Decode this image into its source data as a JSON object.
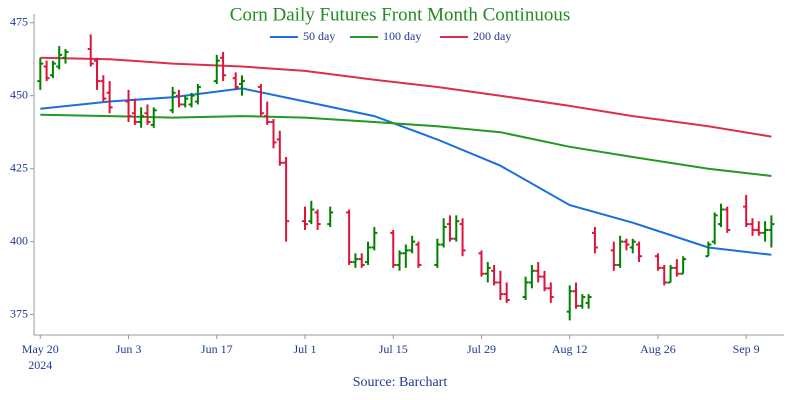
{
  "chart_data": {
    "type": "ohlc",
    "title": "Corn Daily Futures Front Month Continuous",
    "source": "Source: Barchart",
    "title_color": "#228b22",
    "up_color": "#008000",
    "down_color": "#dc143c",
    "legend": "top",
    "x": [
      "2024-05-20",
      "2024-05-21",
      "2024-05-22",
      "2024-05-23",
      "2024-05-24",
      "2024-05-28",
      "2024-05-29",
      "2024-05-30",
      "2024-05-31",
      "2024-06-03",
      "2024-06-04",
      "2024-06-05",
      "2024-06-06",
      "2024-06-07",
      "2024-06-10",
      "2024-06-11",
      "2024-06-12",
      "2024-06-13",
      "2024-06-14",
      "2024-06-17",
      "2024-06-18",
      "2024-06-20",
      "2024-06-21",
      "2024-06-24",
      "2024-06-25",
      "2024-06-26",
      "2024-06-27",
      "2024-06-28",
      "2024-07-01",
      "2024-07-02",
      "2024-07-03",
      "2024-07-05",
      "2024-07-08",
      "2024-07-09",
      "2024-07-10",
      "2024-07-11",
      "2024-07-12",
      "2024-07-15",
      "2024-07-16",
      "2024-07-17",
      "2024-07-18",
      "2024-07-19",
      "2024-07-22",
      "2024-07-23",
      "2024-07-24",
      "2024-07-25",
      "2024-07-26",
      "2024-07-29",
      "2024-07-30",
      "2024-07-31",
      "2024-08-01",
      "2024-08-02",
      "2024-08-05",
      "2024-08-06",
      "2024-08-07",
      "2024-08-08",
      "2024-08-09",
      "2024-08-12",
      "2024-08-13",
      "2024-08-14",
      "2024-08-15",
      "2024-08-16",
      "2024-08-19",
      "2024-08-20",
      "2024-08-21",
      "2024-08-22",
      "2024-08-23",
      "2024-08-26",
      "2024-08-27",
      "2024-08-28",
      "2024-08-29",
      "2024-08-30",
      "2024-09-03",
      "2024-09-04",
      "2024-09-05",
      "2024-09-06",
      "2024-09-09",
      "2024-09-10",
      "2024-09-11",
      "2024-09-12",
      "2024-09-13"
    ],
    "open": [
      455,
      460,
      457,
      460,
      463,
      466,
      462,
      455,
      451,
      448,
      444,
      441,
      444,
      440,
      445,
      450,
      447,
      447,
      448,
      455,
      463,
      456,
      454,
      453,
      443,
      441,
      435,
      427,
      407,
      407,
      410,
      406,
      410,
      393,
      394,
      393,
      398,
      403,
      392,
      396,
      397,
      399,
      392,
      399,
      406,
      401,
      406,
      396,
      389,
      390,
      386,
      382,
      381,
      386,
      390,
      388,
      384,
      376,
      383,
      378,
      379,
      403,
      397,
      392,
      400,
      398,
      399,
      395,
      391,
      386,
      391,
      389,
      395,
      400,
      406,
      411,
      412,
      406,
      404,
      403,
      404
    ],
    "high": [
      463,
      462,
      462,
      467,
      466,
      471,
      463,
      457,
      455,
      452,
      449,
      446,
      447,
      446,
      453,
      452,
      450,
      451,
      454,
      464,
      465,
      458,
      457,
      454,
      448,
      442,
      438,
      429,
      412,
      414,
      411,
      412,
      411,
      396,
      396,
      400,
      405,
      404,
      397,
      399,
      402,
      400,
      401,
      408,
      409,
      409,
      408,
      397,
      393,
      392,
      390,
      386,
      388,
      392,
      393,
      390,
      386,
      385,
      386,
      382,
      382,
      405,
      400,
      402,
      401,
      401,
      400,
      396,
      392,
      392,
      394,
      395,
      400,
      410,
      413,
      412,
      416,
      408,
      407,
      407,
      409
    ],
    "low": [
      452,
      455,
      456,
      459,
      461,
      460,
      452,
      448,
      444,
      441,
      440,
      439,
      440,
      439,
      444,
      446,
      446,
      446,
      447,
      454,
      455,
      452,
      450,
      443,
      440,
      432,
      426,
      400,
      404,
      406,
      404,
      405,
      392,
      391,
      391,
      392,
      397,
      391,
      390,
      391,
      396,
      391,
      391,
      398,
      400,
      400,
      395,
      388,
      386,
      385,
      380,
      379,
      380,
      384,
      386,
      383,
      379,
      373,
      377,
      377,
      377,
      396,
      390,
      391,
      397,
      396,
      393,
      390,
      385,
      386,
      388,
      389,
      395,
      399,
      405,
      403,
      405,
      402,
      402,
      400,
      398
    ],
    "close": [
      461,
      456,
      461,
      464,
      465,
      461,
      455,
      449,
      446,
      443,
      441,
      443,
      441,
      445,
      451,
      447,
      449,
      450,
      453,
      462,
      457,
      453,
      455,
      444,
      441,
      434,
      427,
      407,
      406,
      411,
      406,
      410,
      393,
      394,
      392,
      398,
      403,
      392,
      396,
      397,
      400,
      392,
      399,
      405,
      401,
      407,
      397,
      389,
      391,
      386,
      382,
      380,
      386,
      390,
      388,
      384,
      381,
      383,
      378,
      381,
      381,
      398,
      392,
      400,
      399,
      400,
      395,
      391,
      386,
      391,
      389,
      394,
      399,
      409,
      411,
      404,
      406,
      404,
      403,
      404,
      406
    ],
    "series": [
      {
        "name": "50 day",
        "color": "#1a6fdf",
        "x": [
          "2024-05-20",
          "2024-05-31",
          "2024-06-10",
          "2024-06-21",
          "2024-07-01",
          "2024-07-12",
          "2024-07-22",
          "2024-08-01",
          "2024-08-12",
          "2024-08-22",
          "2024-09-03",
          "2024-09-13"
        ],
        "values": [
          445.5,
          448,
          449.5,
          452.5,
          448,
          443,
          435,
          426,
          412.5,
          406.5,
          398,
          395.5
        ]
      },
      {
        "name": "100 day",
        "color": "#229922",
        "x": [
          "2024-05-20",
          "2024-05-31",
          "2024-06-10",
          "2024-06-21",
          "2024-07-01",
          "2024-07-12",
          "2024-07-22",
          "2024-08-01",
          "2024-08-12",
          "2024-08-22",
          "2024-09-03",
          "2024-09-13"
        ],
        "values": [
          443.5,
          443,
          442.5,
          443,
          442.5,
          441,
          439.5,
          437.5,
          432.5,
          429,
          425,
          422.5
        ]
      },
      {
        "name": "200 day",
        "color": "#dc2f4c",
        "x": [
          "2024-05-20",
          "2024-05-31",
          "2024-06-10",
          "2024-06-21",
          "2024-07-01",
          "2024-07-12",
          "2024-07-22",
          "2024-08-01",
          "2024-08-12",
          "2024-08-22",
          "2024-09-03",
          "2024-09-13"
        ],
        "values": [
          463,
          462.5,
          461,
          460,
          458.5,
          455.5,
          453,
          450,
          446.5,
          443,
          439.5,
          436
        ]
      }
    ],
    "xlim": [
      "2024-05-19",
      "2024-09-15"
    ],
    "xticks": [
      {
        "value": "2024-05-20",
        "label": "May 20"
      },
      {
        "value": "2024-06-03",
        "label": "Jun 3"
      },
      {
        "value": "2024-06-17",
        "label": "Jun 17"
      },
      {
        "value": "2024-07-01",
        "label": "Jul 1"
      },
      {
        "value": "2024-07-15",
        "label": "Jul 15"
      },
      {
        "value": "2024-07-29",
        "label": "Jul 29"
      },
      {
        "value": "2024-08-12",
        "label": "Aug 12"
      },
      {
        "value": "2024-08-26",
        "label": "Aug 26"
      },
      {
        "value": "2024-09-09",
        "label": "Sep 9"
      }
    ],
    "xtick_year": "2024",
    "ylim": [
      368,
      478
    ],
    "yticks": [
      375,
      400,
      425,
      450,
      475
    ]
  }
}
